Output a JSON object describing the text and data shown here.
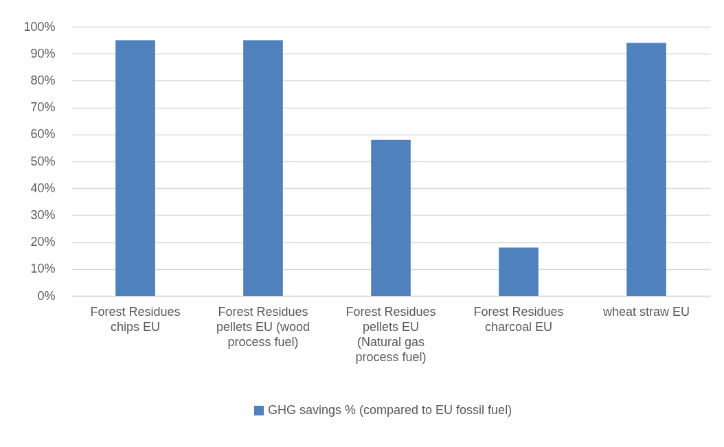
{
  "chart_data": {
    "type": "bar",
    "categories": [
      "Forest Residues chips EU",
      "Forest Residues pellets EU (wood process fuel)",
      "Forest Residues pellets EU (Natural gas process fuel)",
      "Forest Residues charcoal EU",
      "wheat straw EU"
    ],
    "series": [
      {
        "name": "GHG savings % (compared to EU fossil fuel)",
        "color": "#4f81bd",
        "values": [
          95,
          95,
          58,
          18,
          94
        ]
      }
    ],
    "ylim": [
      0,
      100
    ],
    "yticks": [
      {
        "value": 0,
        "label": "0%"
      },
      {
        "value": 10,
        "label": "10%"
      },
      {
        "value": 20,
        "label": "20%"
      },
      {
        "value": 30,
        "label": "30%"
      },
      {
        "value": 40,
        "label": "40%"
      },
      {
        "value": 50,
        "label": "50%"
      },
      {
        "value": 60,
        "label": "60%"
      },
      {
        "value": 70,
        "label": "70%"
      },
      {
        "value": 80,
        "label": "80%"
      },
      {
        "value": 90,
        "label": "90%"
      },
      {
        "value": 100,
        "label": "100%"
      }
    ],
    "grid": "y",
    "legend": "bottom"
  }
}
